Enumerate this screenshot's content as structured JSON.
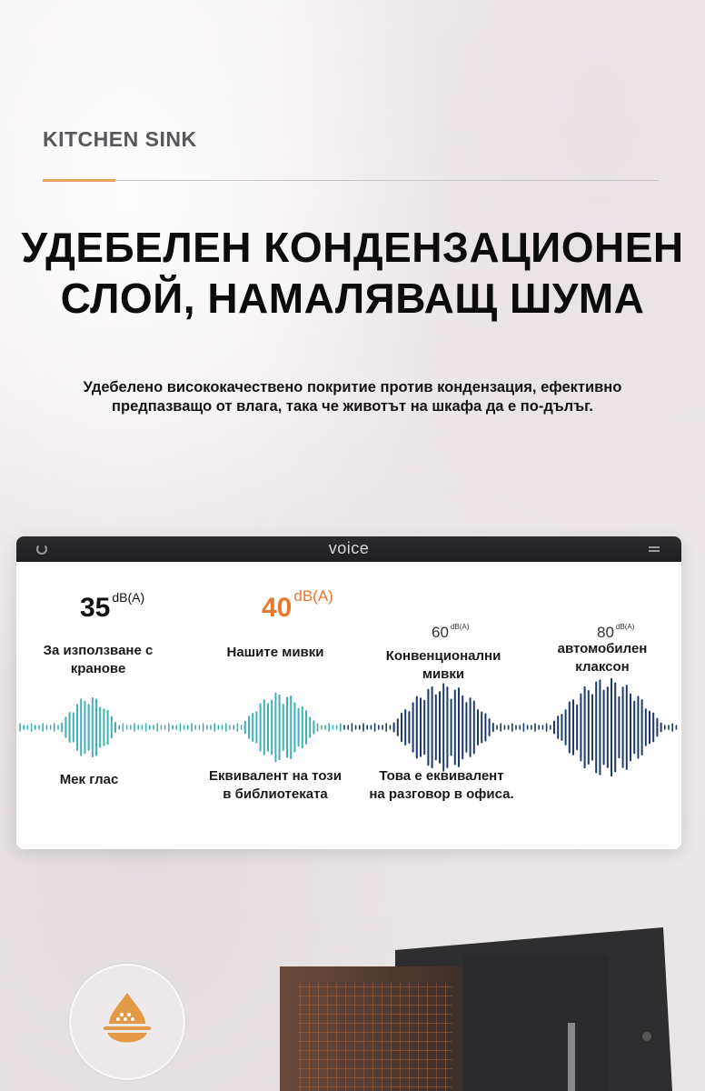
{
  "brand": "KITCHEN SINK",
  "headline": {
    "line1": "УДЕБЕЛЕН КОНДЕНЗАЦИОНЕН",
    "line2": "СЛОЙ, НАМАЛЯВАЩ ШУМА"
  },
  "subtitle": {
    "line1": "Удебелено висококачествено покритие против кондензация, ефективно",
    "line2": "предпазващо от влага, така че животът на шкафа да е по-дълъг."
  },
  "window": {
    "title": "voice",
    "levels": [
      {
        "value": "35",
        "unit": "dB(A)",
        "color": "#111111",
        "label_line1": "За използване с",
        "label_line2": "кранове"
      },
      {
        "value": "40",
        "unit": "dB(A)",
        "color": "#e8782a",
        "label_line1": "Нашите мивки",
        "label_line2": ""
      },
      {
        "value": "60",
        "unit": "dB(A)",
        "color": "#333333",
        "label_line1": "Конвенционални",
        "label_line2": "мивки"
      },
      {
        "value": "80",
        "unit": "dB(A)",
        "color": "#333333",
        "label_line1": "автомобилен",
        "label_line2": "клаксон"
      }
    ],
    "bottom_labels": [
      {
        "line1": "Мек глас",
        "line2": ""
      },
      {
        "line1": "Еквивалент на този",
        "line2": "в библиотеката"
      },
      {
        "line1": "Това е еквивалент",
        "line2": "на разговор в офиса."
      }
    ]
  },
  "colors": {
    "accent_orange": "#e6a25a",
    "wave_teal": "#3fb0b8",
    "wave_blue": "#1c3a6b"
  },
  "icons": {
    "feature_badge": "water-drop-icon"
  }
}
